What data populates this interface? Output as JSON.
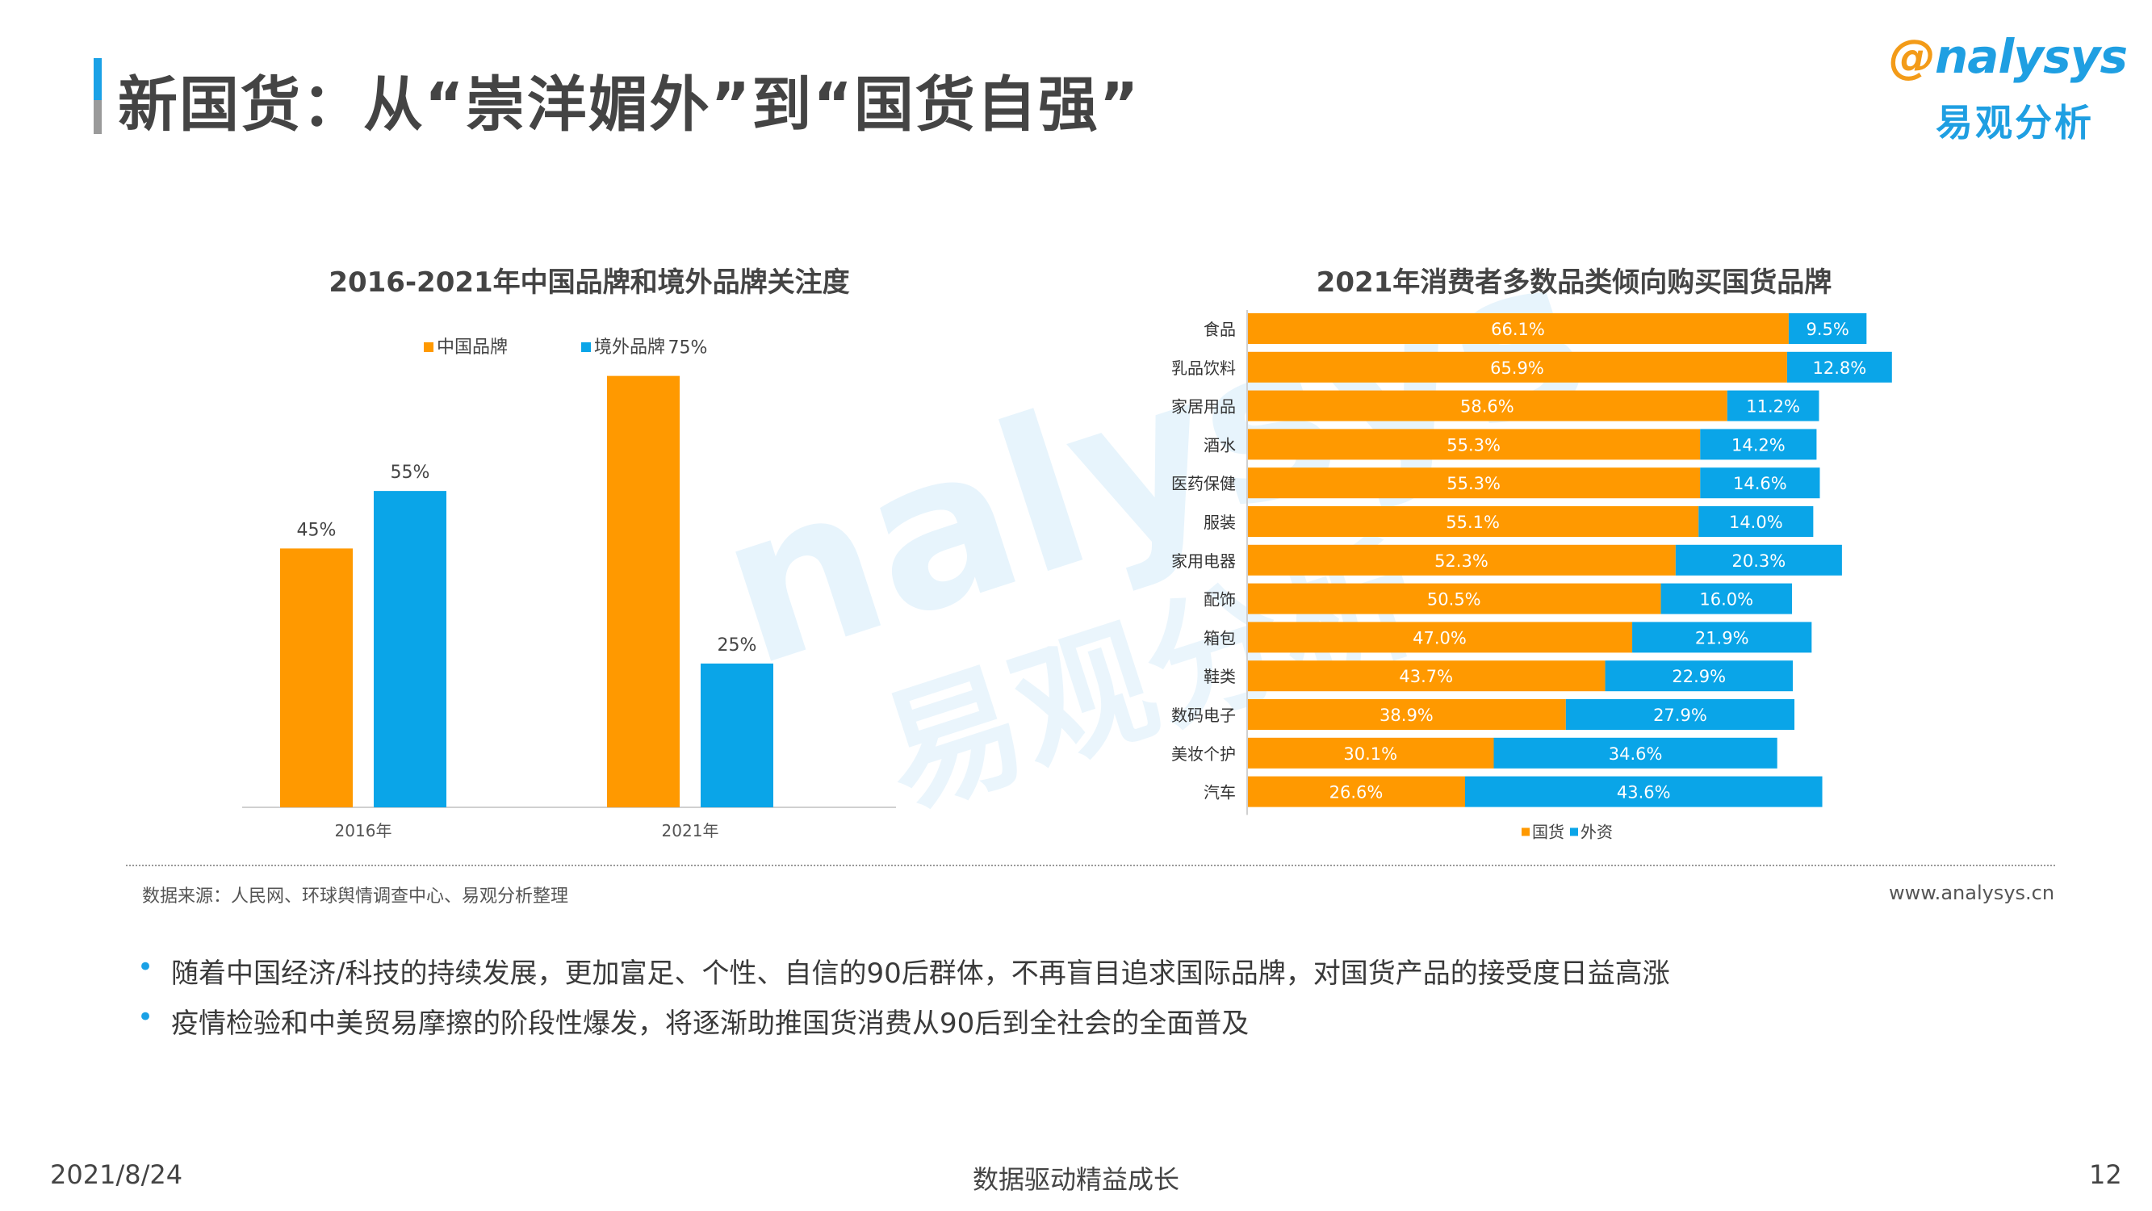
{
  "header": {
    "title": "新国货：从“崇洋媚外”到“国货自强”"
  },
  "logo": {
    "text_en": "nalysys",
    "text_cn": "易观分析"
  },
  "watermark": {
    "text_en": "nalysys",
    "text_cn": "易观分析"
  },
  "colors": {
    "orange": "#ff9900",
    "blue": "#0aa5e8",
    "accent": "#1aa1e6"
  },
  "chart_data": [
    {
      "type": "bar",
      "title": "2016-2021年中国品牌和境外品牌关注度",
      "categories": [
        "2016年",
        "2021年"
      ],
      "series": [
        {
          "name": "中国品牌",
          "values": [
            45,
            75
          ],
          "labels": [
            "45%",
            "75%"
          ]
        },
        {
          "name": "境外品牌",
          "values": [
            55,
            25
          ],
          "labels": [
            "55%",
            "25%"
          ]
        }
      ],
      "ylim": [
        0,
        80
      ],
      "grid": false,
      "legend": "top"
    },
    {
      "type": "bar",
      "orientation": "horizontal-stacked",
      "title": "2021年消费者多数品类倾向购买国货品牌",
      "categories": [
        "食品",
        "乳品饮料",
        "家居用品",
        "酒水",
        "医药保健",
        "服装",
        "家用电器",
        "配饰",
        "箱包",
        "鞋类",
        "数码电子",
        "美妆个护",
        "汽车"
      ],
      "series": [
        {
          "name": "国货",
          "values": [
            66.1,
            65.9,
            58.6,
            55.3,
            55.3,
            55.1,
            52.3,
            50.5,
            47.0,
            43.7,
            38.9,
            30.1,
            26.6
          ],
          "labels": [
            "66.1%",
            "65.9%",
            "58.6%",
            "55.3%",
            "55.3%",
            "55.1%",
            "52.3%",
            "50.5%",
            "47.0%",
            "43.7%",
            "38.9%",
            "30.1%",
            "26.6%"
          ]
        },
        {
          "name": "外资",
          "values": [
            9.5,
            12.8,
            11.2,
            14.2,
            14.6,
            14.0,
            20.3,
            16.0,
            21.9,
            22.9,
            27.9,
            34.6,
            43.6
          ],
          "labels": [
            "9.5%",
            "12.8%",
            "11.2%",
            "14.2%",
            "14.6%",
            "14.0%",
            "20.3%",
            "16.0%",
            "21.9%",
            "22.9%",
            "27.9%",
            "34.6%",
            "43.6%"
          ]
        }
      ],
      "grid": false,
      "legend": "bottom"
    }
  ],
  "source": "数据来源：人民网、环球舆情调查中心、易观分析整理",
  "url": "www.analysys.cn",
  "bullets": [
    "随着中国经济/科技的持续发展，更加富足、个性、自信的90后群体，不再盲目追求国际品牌，对国货产品的接受度日益高涨",
    "疫情检验和中美贸易摩擦的阶段性爆发，将逐渐助推国货消费从90后到全社会的全面普及"
  ],
  "bullet_symbol": "•",
  "footer": {
    "date": "2021/8/24",
    "slogan": "数据驱动精益成长",
    "page": "12"
  }
}
